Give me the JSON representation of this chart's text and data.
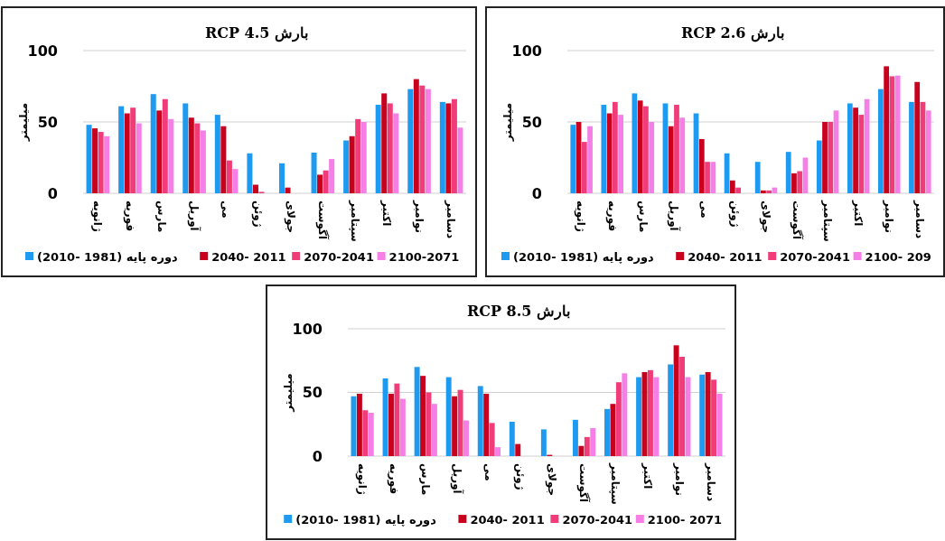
{
  "chart_data": [
    {
      "type": "bar",
      "title": "بارش RCP 4.5",
      "ylabel": "میلیمتر",
      "categories": [
        "ژانویه",
        "فوریه",
        "مارس",
        "آوریل",
        "می",
        "ژوئن",
        "جولای",
        "آگوست",
        "سپتامبر",
        "اکتبر",
        "نوامبر",
        "دسامبر"
      ],
      "ylim": [
        0,
        100
      ],
      "yticks": [
        0,
        50,
        100
      ],
      "grid": "y",
      "legend": "bottom",
      "series": [
        {
          "name": "دوره پایه (1981 -2010)",
          "color": "#1e9bf0",
          "values": [
            48,
            61,
            69.5,
            63,
            55,
            28,
            21,
            28.5,
            37,
            62,
            73,
            64
          ]
        },
        {
          "name": "2040- 2011",
          "color": "#c8001e",
          "values": [
            45.5,
            56,
            58,
            53,
            47,
            6,
            4,
            13,
            40,
            70,
            80,
            63
          ]
        },
        {
          "name": "2070-2041",
          "color": "#f03c78",
          "values": [
            43,
            60,
            66,
            49,
            23,
            1,
            0,
            16,
            52,
            63,
            75.5,
            66
          ]
        },
        {
          "name": "2100-2071",
          "color": "#f57fe6",
          "values": [
            40,
            49,
            52,
            44,
            17,
            0,
            0,
            24,
            50,
            56,
            73,
            46
          ]
        }
      ]
    },
    {
      "type": "bar",
      "title": "بارش RCP 2.6",
      "ylabel": "میلیمتر",
      "categories": [
        "ژانویه",
        "فوریه",
        "مارس",
        "آوریل",
        "می",
        "ژوئن",
        "جولای",
        "آگوست",
        "سپتامبر",
        "اکتبر",
        "نوامبر",
        "دسامبر"
      ],
      "ylim": [
        0,
        100
      ],
      "yticks": [
        0,
        50,
        100
      ],
      "grid": "y",
      "legend": "bottom",
      "series": [
        {
          "name": "دوره پایه (1981 -2010)",
          "color": "#1e9bf0",
          "values": [
            48,
            62,
            70,
            63,
            56,
            28,
            22,
            29,
            37,
            63,
            73,
            64
          ]
        },
        {
          "name": "2040- 2011",
          "color": "#c8001e",
          "values": [
            50,
            56,
            65,
            47,
            38,
            9,
            2,
            14,
            50,
            60,
            89,
            78
          ]
        },
        {
          "name": "2070-2041",
          "color": "#f03c78",
          "values": [
            36,
            64,
            61,
            62,
            22,
            4,
            2,
            15.5,
            50,
            55,
            82,
            64
          ]
        },
        {
          "name": "2100- 209",
          "color": "#f57fe6",
          "values": [
            47,
            55,
            50,
            53,
            22,
            0,
            4,
            25,
            58,
            66,
            82.5,
            58
          ]
        }
      ]
    },
    {
      "type": "bar",
      "title": "بارش RCP 8.5",
      "ylabel": "میلیمتر",
      "categories": [
        "ژانویه",
        "فوریه",
        "مارس",
        "آوریل",
        "می",
        "ژوئن",
        "جولای",
        "آگوست",
        "سپتامبر",
        "اکتبر",
        "نوامبر",
        "دسامبر"
      ],
      "ylim": [
        0,
        100
      ],
      "yticks": [
        0,
        50,
        100
      ],
      "grid": "y",
      "legend": "bottom",
      "series": [
        {
          "name": "دوره پایه (1981 -2010)",
          "color": "#1e9bf0",
          "values": [
            47,
            61,
            70,
            62,
            55,
            27,
            21,
            28.5,
            37,
            62,
            72,
            64
          ]
        },
        {
          "name": "2040- 2011",
          "color": "#c8001e",
          "values": [
            49,
            49,
            63,
            47,
            49,
            9.5,
            1,
            8,
            41,
            66,
            87,
            66
          ]
        },
        {
          "name": "2070-2041",
          "color": "#f03c78",
          "values": [
            36,
            57,
            50,
            52,
            26,
            0,
            0,
            15,
            58,
            67.5,
            78,
            60
          ]
        },
        {
          "name": "2100- 2071",
          "color": "#f57fe6",
          "values": [
            34,
            45,
            41,
            28,
            7,
            0,
            0,
            22,
            65,
            62,
            62,
            49
          ]
        }
      ]
    }
  ]
}
